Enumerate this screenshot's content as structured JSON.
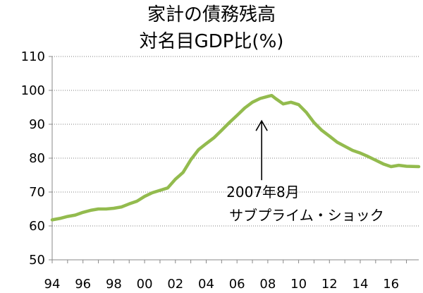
{
  "chart_data": {
    "type": "line",
    "title": "家計の債務残高",
    "subtitle": "対名目GDP比(%)",
    "xlabel": "",
    "ylabel": "",
    "ylim": [
      50,
      110
    ],
    "xlim": [
      1994,
      2017.8
    ],
    "y_ticks": [
      "50",
      "60",
      "70",
      "80",
      "90",
      "100",
      "110"
    ],
    "x_ticks": [
      "94",
      "96",
      "98",
      "00",
      "02",
      "04",
      "06",
      "08",
      "10",
      "12",
      "14",
      "16"
    ],
    "grid": "horizontal-dotted",
    "line_color": "#93bb4e",
    "series": [
      {
        "name": "家計の債務残高 対名目GDP比(%)",
        "x": [
          1994.0,
          1994.5,
          1995.0,
          1995.5,
          1996.0,
          1996.5,
          1997.0,
          1997.5,
          1998.0,
          1998.5,
          1999.0,
          1999.5,
          2000.0,
          2000.5,
          2001.0,
          2001.5,
          2002.0,
          2002.5,
          2003.0,
          2003.5,
          2004.0,
          2004.5,
          2005.0,
          2005.5,
          2006.0,
          2006.5,
          2007.0,
          2007.5,
          2008.0,
          2008.25,
          2008.5,
          2009.0,
          2009.5,
          2010.0,
          2010.5,
          2011.0,
          2011.5,
          2012.0,
          2012.5,
          2013.0,
          2013.5,
          2014.0,
          2014.5,
          2015.0,
          2015.5,
          2016.0,
          2016.5,
          2017.0,
          2017.8
        ],
        "values": [
          61.8,
          62.2,
          62.8,
          63.2,
          64.0,
          64.6,
          65.0,
          65.0,
          65.2,
          65.6,
          66.5,
          67.3,
          68.7,
          69.8,
          70.5,
          71.2,
          73.8,
          75.8,
          79.5,
          82.5,
          84.3,
          86.0,
          88.2,
          90.5,
          92.6,
          94.8,
          96.5,
          97.6,
          98.2,
          98.5,
          97.6,
          96.0,
          96.5,
          95.8,
          93.5,
          90.5,
          88.2,
          86.5,
          84.7,
          83.5,
          82.3,
          81.5,
          80.5,
          79.4,
          78.3,
          77.5,
          77.9,
          77.6,
          77.5
        ]
      }
    ],
    "annotations": [
      {
        "text_line1": "2007年8月",
        "text_line2": "サブプライム・ショック",
        "x": 2007.6,
        "y": 91
      }
    ]
  }
}
